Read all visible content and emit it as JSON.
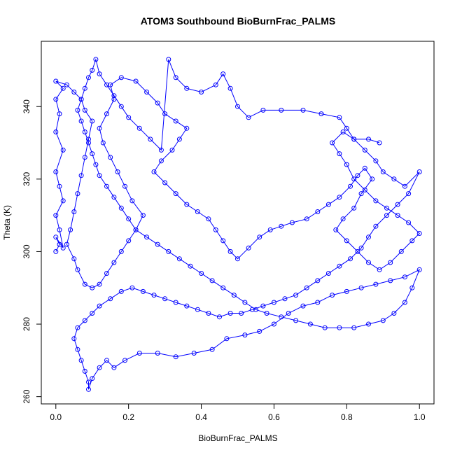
{
  "chart_data": {
    "type": "scatter",
    "title": "ATOM3 Southbound BioBurnFrac_PALMS",
    "xlabel": "BioBurnFrac_PALMS",
    "ylabel": "Theta (K)",
    "xlim": [
      -0.04,
      1.04
    ],
    "ylim": [
      258,
      358
    ],
    "xticks": [
      0.0,
      0.2,
      0.4,
      0.6,
      0.8,
      1.0
    ],
    "xtick_labels": [
      "0.0",
      "0.2",
      "0.4",
      "0.6",
      "0.8",
      "1.0"
    ],
    "yticks": [
      260,
      280,
      300,
      320,
      340
    ],
    "ytick_labels": [
      "260",
      "280",
      "300",
      "320",
      "340"
    ],
    "grid": false,
    "legend": "none",
    "marker": "open-circle",
    "connected": true,
    "color": "#0000ff",
    "series": [
      {
        "points": [
          [
            0.0,
            300
          ],
          [
            0.01,
            302
          ],
          [
            0.0,
            304
          ],
          [
            0.02,
            301
          ],
          [
            0.01,
            306
          ],
          [
            0.0,
            310
          ],
          [
            0.02,
            314
          ],
          [
            0.01,
            318
          ],
          [
            0.0,
            322
          ],
          [
            0.02,
            328
          ],
          [
            0.0,
            333
          ],
          [
            0.01,
            338
          ],
          [
            0.0,
            342
          ],
          [
            0.02,
            345
          ],
          [
            0.0,
            347
          ],
          [
            0.03,
            346
          ],
          [
            0.05,
            344
          ],
          [
            0.07,
            342
          ],
          [
            0.08,
            339
          ],
          [
            0.1,
            336
          ],
          [
            0.09,
            331
          ],
          [
            0.08,
            326
          ],
          [
            0.07,
            321
          ],
          [
            0.06,
            316
          ],
          [
            0.05,
            311
          ],
          [
            0.04,
            306
          ],
          [
            0.03,
            302
          ],
          [
            0.05,
            298
          ],
          [
            0.06,
            295
          ],
          [
            0.08,
            291
          ],
          [
            0.1,
            290
          ],
          [
            0.12,
            291
          ],
          [
            0.14,
            294
          ],
          [
            0.16,
            297
          ],
          [
            0.18,
            300
          ],
          [
            0.2,
            303
          ],
          [
            0.22,
            306
          ],
          [
            0.24,
            310
          ],
          [
            0.21,
            314
          ],
          [
            0.19,
            318
          ],
          [
            0.17,
            322
          ],
          [
            0.15,
            326
          ],
          [
            0.13,
            330
          ],
          [
            0.12,
            334
          ],
          [
            0.14,
            338
          ],
          [
            0.16,
            342
          ],
          [
            0.15,
            346
          ],
          [
            0.18,
            348
          ],
          [
            0.22,
            347
          ],
          [
            0.25,
            344
          ],
          [
            0.28,
            341
          ],
          [
            0.3,
            338
          ],
          [
            0.33,
            336
          ],
          [
            0.36,
            334
          ],
          [
            0.34,
            331
          ],
          [
            0.32,
            328
          ],
          [
            0.29,
            325
          ],
          [
            0.27,
            322
          ],
          [
            0.3,
            319
          ],
          [
            0.33,
            316
          ],
          [
            0.36,
            313
          ],
          [
            0.39,
            311
          ],
          [
            0.42,
            309
          ],
          [
            0.44,
            306
          ],
          [
            0.46,
            303
          ],
          [
            0.48,
            300
          ],
          [
            0.5,
            298
          ],
          [
            0.53,
            301
          ],
          [
            0.56,
            304
          ],
          [
            0.59,
            306
          ],
          [
            0.62,
            307
          ],
          [
            0.65,
            308
          ],
          [
            0.69,
            309
          ],
          [
            0.72,
            311
          ],
          [
            0.75,
            313
          ],
          [
            0.78,
            315
          ],
          [
            0.81,
            318
          ],
          [
            0.83,
            321
          ],
          [
            0.85,
            323
          ],
          [
            0.87,
            320
          ],
          [
            0.84,
            316
          ],
          [
            0.82,
            312
          ],
          [
            0.79,
            309
          ],
          [
            0.77,
            306
          ],
          [
            0.8,
            303
          ],
          [
            0.83,
            300
          ],
          [
            0.86,
            297
          ],
          [
            0.89,
            295
          ],
          [
            0.92,
            297
          ],
          [
            0.95,
            300
          ],
          [
            0.98,
            303
          ],
          [
            1.0,
            305
          ],
          [
            0.97,
            308
          ],
          [
            0.94,
            310
          ],
          [
            0.91,
            312
          ],
          [
            0.88,
            314
          ],
          [
            0.85,
            317
          ],
          [
            0.82,
            320
          ],
          [
            0.8,
            324
          ],
          [
            0.78,
            327
          ],
          [
            0.76,
            330
          ],
          [
            0.79,
            333
          ],
          [
            0.82,
            331
          ],
          [
            0.85,
            328
          ],
          [
            0.88,
            325
          ],
          [
            0.9,
            322
          ],
          [
            0.93,
            320
          ],
          [
            0.96,
            318
          ],
          [
            1.0,
            322
          ],
          [
            0.97,
            316
          ],
          [
            0.94,
            313
          ],
          [
            0.91,
            310
          ],
          [
            0.88,
            307
          ],
          [
            0.86,
            304
          ],
          [
            0.84,
            301
          ],
          [
            0.81,
            298
          ],
          [
            0.78,
            296
          ],
          [
            0.75,
            294
          ],
          [
            0.72,
            292
          ],
          [
            0.69,
            290
          ],
          [
            0.66,
            288
          ],
          [
            0.63,
            287
          ],
          [
            0.6,
            286
          ],
          [
            0.57,
            285
          ],
          [
            0.54,
            284
          ],
          [
            0.51,
            283
          ],
          [
            0.48,
            283
          ],
          [
            0.45,
            282
          ],
          [
            0.42,
            283
          ],
          [
            0.39,
            284
          ],
          [
            0.36,
            285
          ],
          [
            0.33,
            286
          ],
          [
            0.3,
            287
          ],
          [
            0.27,
            288
          ],
          [
            0.24,
            289
          ],
          [
            0.21,
            290
          ],
          [
            0.18,
            289
          ],
          [
            0.15,
            287
          ],
          [
            0.12,
            285
          ],
          [
            0.1,
            283
          ],
          [
            0.08,
            281
          ],
          [
            0.06,
            279
          ],
          [
            0.05,
            276
          ],
          [
            0.06,
            273
          ],
          [
            0.07,
            270
          ],
          [
            0.08,
            267
          ],
          [
            0.09,
            264
          ],
          [
            0.09,
            262
          ],
          [
            0.1,
            265
          ],
          [
            0.12,
            268
          ],
          [
            0.14,
            270
          ],
          [
            0.16,
            268
          ],
          [
            0.19,
            270
          ],
          [
            0.23,
            272
          ],
          [
            0.28,
            272
          ],
          [
            0.33,
            271
          ],
          [
            0.38,
            272
          ],
          [
            0.43,
            273
          ],
          [
            0.47,
            276
          ],
          [
            0.52,
            277
          ],
          [
            0.56,
            278
          ],
          [
            0.6,
            280
          ],
          [
            0.64,
            283
          ],
          [
            0.68,
            285
          ],
          [
            0.72,
            286
          ],
          [
            0.76,
            288
          ],
          [
            0.8,
            289
          ],
          [
            0.84,
            290
          ],
          [
            0.88,
            291
          ],
          [
            0.92,
            292
          ],
          [
            0.96,
            293
          ],
          [
            1.0,
            295
          ],
          [
            0.98,
            290
          ],
          [
            0.96,
            286
          ],
          [
            0.93,
            283
          ],
          [
            0.9,
            281
          ],
          [
            0.86,
            280
          ],
          [
            0.82,
            279
          ],
          [
            0.78,
            279
          ],
          [
            0.74,
            279
          ],
          [
            0.7,
            280
          ],
          [
            0.66,
            281
          ],
          [
            0.62,
            282
          ],
          [
            0.58,
            283
          ],
          [
            0.55,
            284
          ],
          [
            0.52,
            286
          ],
          [
            0.49,
            288
          ],
          [
            0.46,
            290
          ],
          [
            0.43,
            292
          ],
          [
            0.4,
            294
          ],
          [
            0.37,
            296
          ],
          [
            0.34,
            298
          ],
          [
            0.31,
            300
          ],
          [
            0.28,
            302
          ],
          [
            0.25,
            304
          ],
          [
            0.22,
            306
          ],
          [
            0.2,
            309
          ],
          [
            0.18,
            312
          ],
          [
            0.16,
            315
          ],
          [
            0.14,
            318
          ],
          [
            0.12,
            321
          ],
          [
            0.11,
            324
          ],
          [
            0.1,
            327
          ],
          [
            0.09,
            330
          ],
          [
            0.08,
            333
          ],
          [
            0.07,
            336
          ],
          [
            0.06,
            339
          ],
          [
            0.07,
            342
          ],
          [
            0.08,
            345
          ],
          [
            0.09,
            348
          ],
          [
            0.1,
            350
          ],
          [
            0.11,
            353
          ],
          [
            0.12,
            349
          ],
          [
            0.14,
            346
          ],
          [
            0.16,
            343
          ],
          [
            0.18,
            340
          ],
          [
            0.2,
            337
          ],
          [
            0.23,
            334
          ],
          [
            0.26,
            331
          ],
          [
            0.29,
            328
          ],
          [
            0.31,
            353
          ],
          [
            0.33,
            348
          ],
          [
            0.36,
            345
          ],
          [
            0.4,
            344
          ],
          [
            0.44,
            346
          ],
          [
            0.46,
            349
          ],
          [
            0.48,
            345
          ],
          [
            0.5,
            340
          ],
          [
            0.53,
            337
          ],
          [
            0.57,
            339
          ],
          [
            0.62,
            339
          ],
          [
            0.68,
            339
          ],
          [
            0.73,
            338
          ],
          [
            0.78,
            337
          ],
          [
            0.8,
            334
          ],
          [
            0.82,
            331
          ],
          [
            0.86,
            331
          ],
          [
            0.89,
            330
          ]
        ]
      }
    ]
  }
}
